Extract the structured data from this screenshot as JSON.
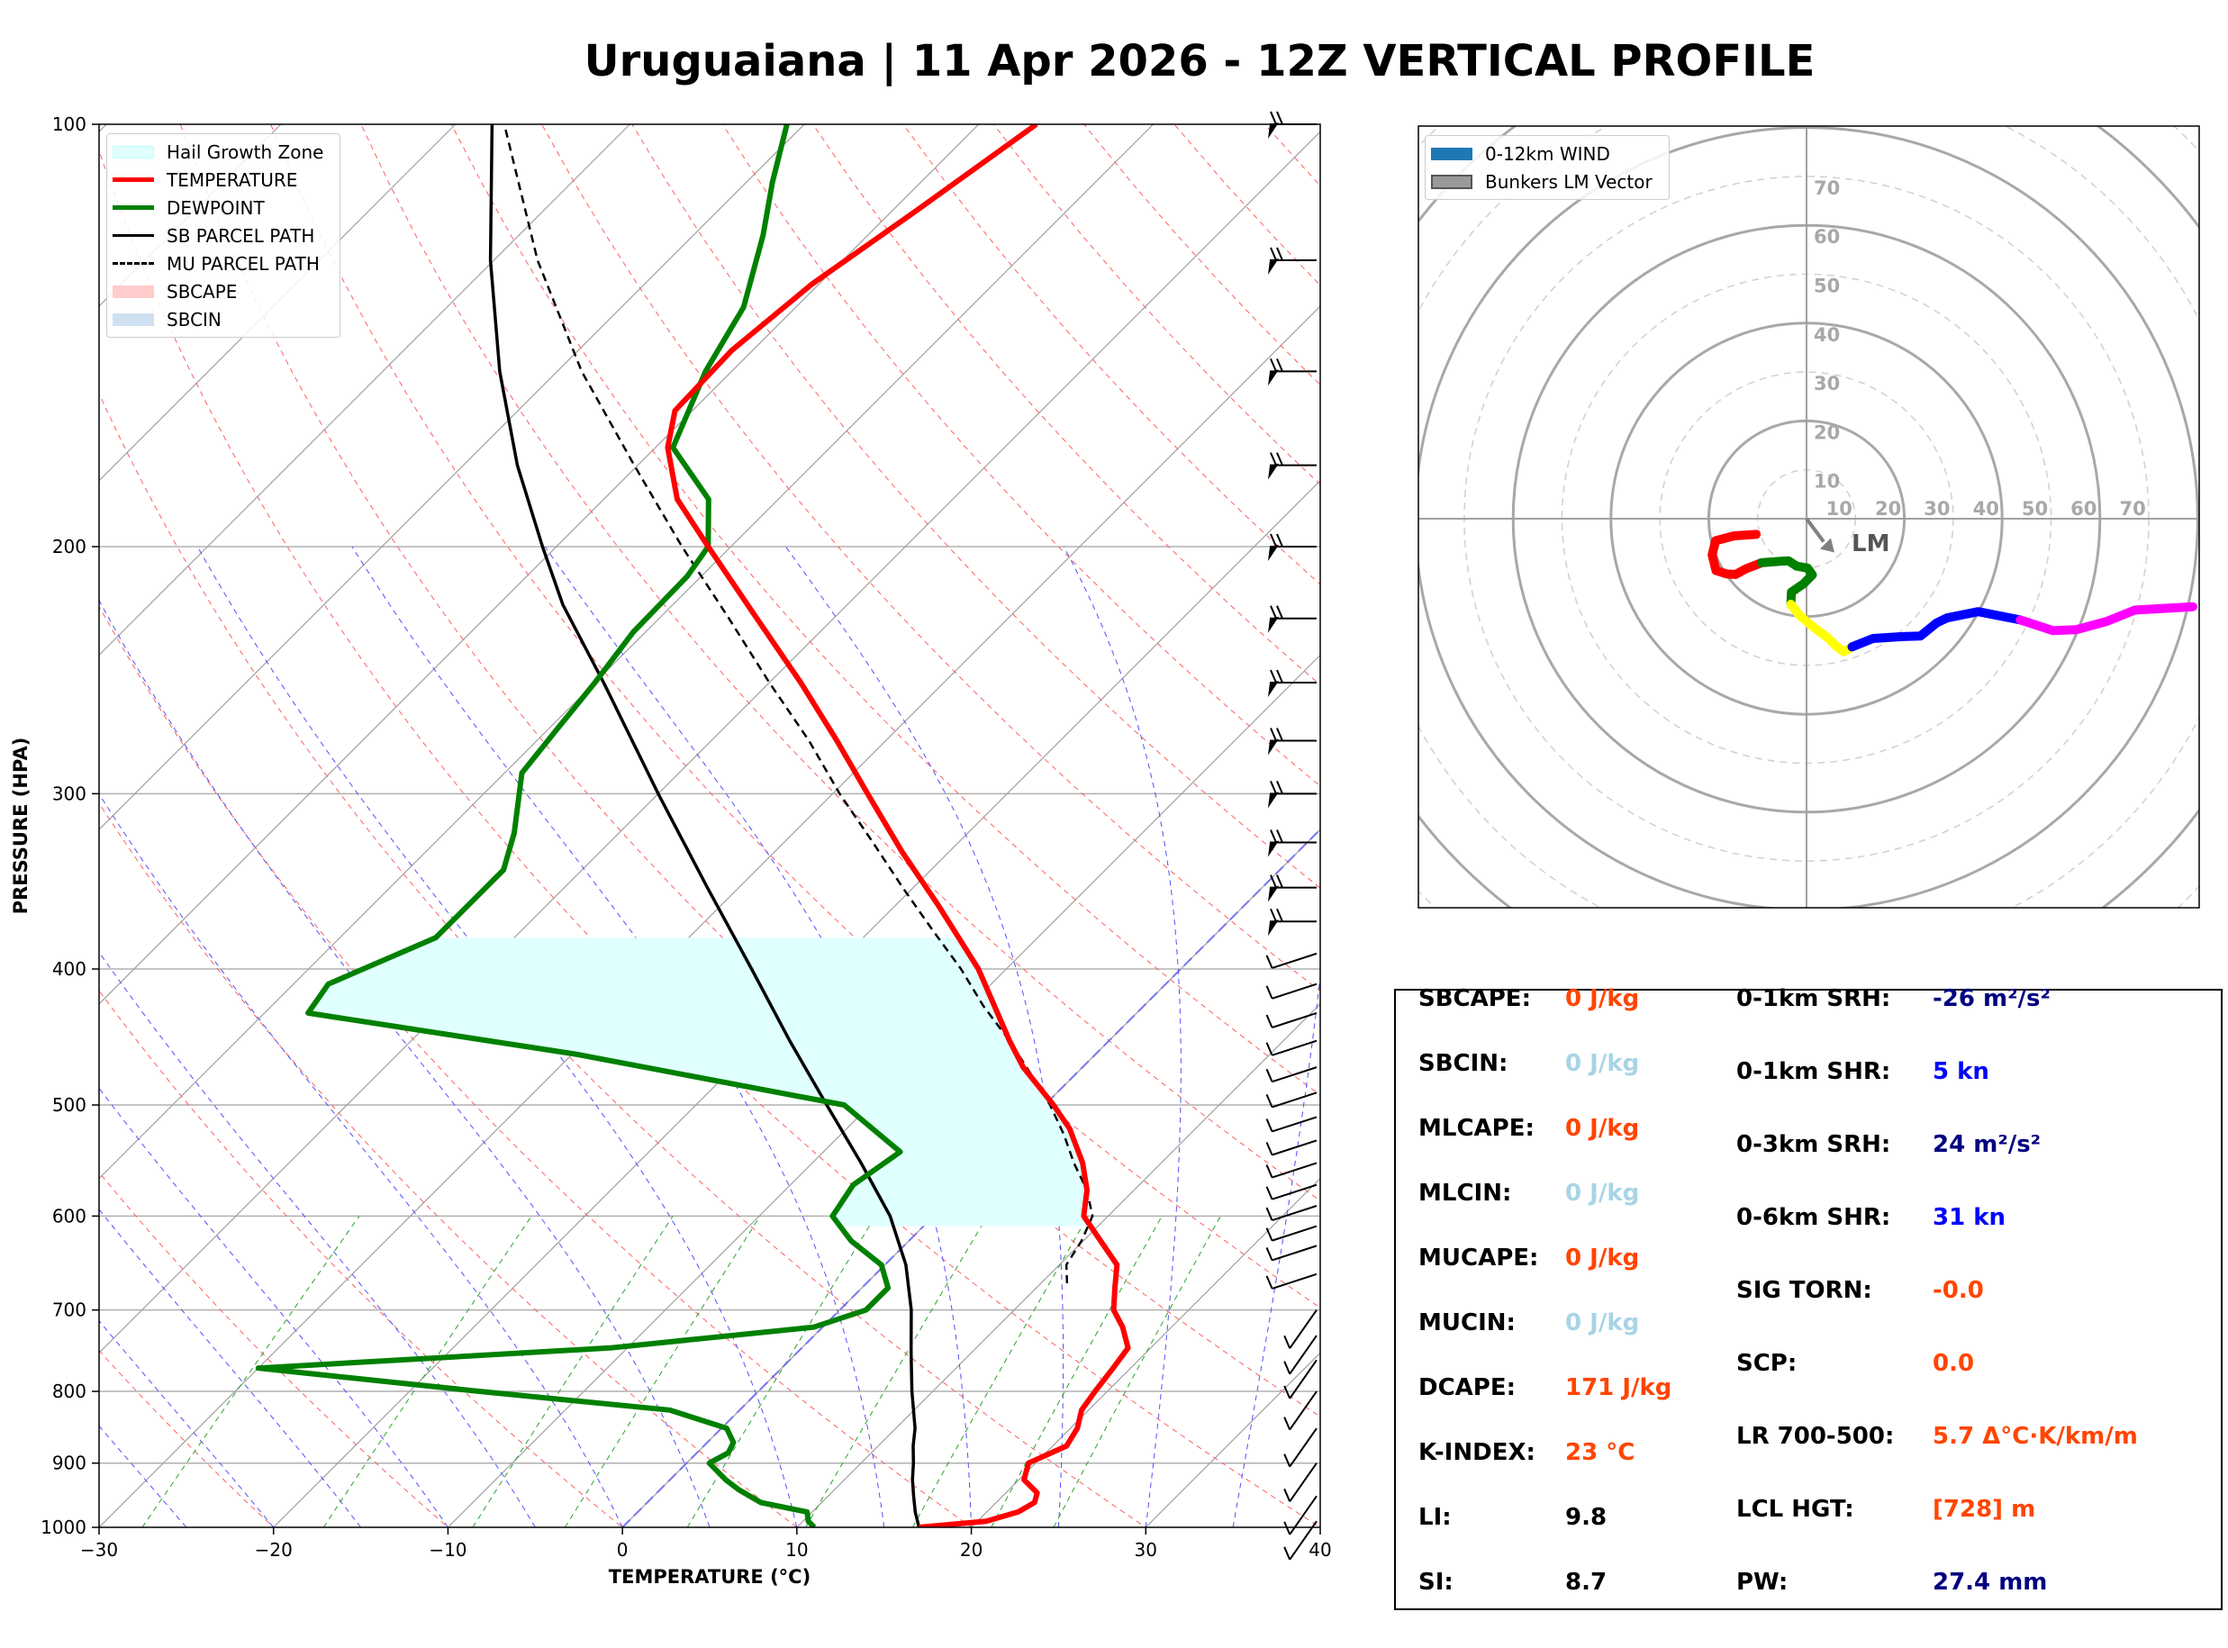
{
  "title": "Uruguaiana | 11 Apr 2026 - 12Z VERTICAL PROFILE",
  "colors": {
    "temperature": "#ff0000",
    "dewpoint": "#008000",
    "sb_parcel": "#000000",
    "mu_parcel": "#000000",
    "hgz_fill": "#e0ffff",
    "sbcape": "#ffcccc",
    "sbcin": "#cfe0f0",
    "hodo_0_1": "#ff0000",
    "hodo_1_3": "#008000",
    "hodo_3_6": "#ffff00",
    "hodo_6_9": "#0000ff",
    "hodo_9_12": "#ff00ff",
    "val_orange": "#ff4500",
    "val_lightblue": "#a9d4e6",
    "val_navy": "#000080",
    "val_blue": "#0000ff",
    "val_black": "#000000"
  },
  "chart_data": [
    {
      "type": "line",
      "chart": "skew-t",
      "xlabel": "TEMPERATURE (°C)",
      "ylabel": "PRESSURE (HPA)",
      "xlim": [
        -30,
        40
      ],
      "ylim": [
        1000,
        100
      ],
      "x_ticks": [
        -30,
        -20,
        -10,
        0,
        10,
        20,
        30,
        40
      ],
      "x_tick_labels": [
        "−30",
        "−20",
        "−10",
        "0",
        "10",
        "20",
        "30",
        "40"
      ],
      "y_ticks": [
        1000,
        900,
        800,
        700,
        600,
        500,
        400,
        300,
        200,
        100
      ],
      "legend": [
        "Hail Growth Zone",
        "TEMPERATURE",
        "DEWPOINT",
        "SB PARCEL PATH",
        "MU PARCEL PATH",
        "SBCAPE",
        "SBCIN"
      ],
      "legend_position": "top-left",
      "series": [
        {
          "name": "TEMPERATURE",
          "points": [
            [
              1000,
              17.0
            ],
            [
              990,
              20.5
            ],
            [
              975,
              21.8
            ],
            [
              960,
              22.2
            ],
            [
              945,
              21.8
            ],
            [
              925,
              20.3
            ],
            [
              900,
              19.6
            ],
            [
              875,
              20.8
            ],
            [
              850,
              20.4
            ],
            [
              825,
              19.6
            ],
            [
              800,
              19.3
            ],
            [
              770,
              19.0
            ],
            [
              745,
              18.7
            ],
            [
              720,
              17.2
            ],
            [
              700,
              15.7
            ],
            [
              675,
              14.5
            ],
            [
              650,
              13.3
            ],
            [
              625,
              11.0
            ],
            [
              600,
              8.6
            ],
            [
              575,
              7.3
            ],
            [
              550,
              5.5
            ],
            [
              520,
              2.8
            ],
            [
              500,
              0.5
            ],
            [
              470,
              -3.4
            ],
            [
              450,
              -5.7
            ],
            [
              400,
              -11.6
            ],
            [
              360,
              -17.6
            ],
            [
              330,
              -22.7
            ],
            [
              300,
              -28.0
            ],
            [
              275,
              -32.8
            ],
            [
              250,
              -38.2
            ],
            [
              225,
              -44.4
            ],
            [
              200,
              -51.3
            ],
            [
              185,
              -55.8
            ],
            [
              170,
              -59.3
            ],
            [
              160,
              -61.0
            ],
            [
              145,
              -61.2
            ],
            [
              130,
              -60.4
            ],
            [
              115,
              -58.6
            ],
            [
              100,
              -56.7
            ]
          ]
        },
        {
          "name": "DEWPOINT",
          "points": [
            [
              1000,
              11.0
            ],
            [
              990,
              10.3
            ],
            [
              975,
              9.7
            ],
            [
              960,
              6.5
            ],
            [
              940,
              4.5
            ],
            [
              925,
              3.2
            ],
            [
              900,
              1.3
            ],
            [
              885,
              1.8
            ],
            [
              870,
              1.5
            ],
            [
              850,
              0.3
            ],
            [
              825,
              -4.0
            ],
            [
              800,
              -16.0
            ],
            [
              770,
              -30.0
            ],
            [
              745,
              -11.0
            ],
            [
              720,
              -0.5
            ],
            [
              700,
              1.5
            ],
            [
              675,
              1.5
            ],
            [
              650,
              -0.2
            ],
            [
              625,
              -3.3
            ],
            [
              600,
              -5.8
            ],
            [
              570,
              -6.4
            ],
            [
              540,
              -5.6
            ],
            [
              500,
              -11.5
            ],
            [
              460,
              -29.8
            ],
            [
              430,
              -47.5
            ],
            [
              410,
              -48.0
            ],
            [
              380,
              -44.5
            ],
            [
              340,
              -44.5
            ],
            [
              320,
              -46.0
            ],
            [
              290,
              -49.0
            ],
            [
              270,
              -49.5
            ],
            [
              250,
              -50.0
            ],
            [
              230,
              -50.7
            ],
            [
              210,
              -50.8
            ],
            [
              200,
              -51.3
            ],
            [
              185,
              -54.0
            ],
            [
              170,
              -59.0
            ],
            [
              150,
              -61.5
            ],
            [
              135,
              -63.0
            ],
            [
              120,
              -66.0
            ],
            [
              110,
              -68.5
            ],
            [
              100,
              -71.0
            ]
          ]
        },
        {
          "name": "SB PARCEL PATH",
          "points": [
            [
              1000,
              17.0
            ],
            [
              975,
              15.9
            ],
            [
              950,
              14.9
            ],
            [
              925,
              13.9
            ],
            [
              900,
              13.0
            ],
            [
              875,
              12.0
            ],
            [
              850,
              11.1
            ],
            [
              800,
              8.8
            ],
            [
              750,
              6.5
            ],
            [
              700,
              4.1
            ],
            [
              650,
              1.2
            ],
            [
              600,
              -2.5
            ],
            [
              550,
              -7.2
            ],
            [
              500,
              -12.5
            ],
            [
              450,
              -18.3
            ],
            [
              400,
              -24.6
            ],
            [
              350,
              -31.8
            ],
            [
              300,
              -40.0
            ],
            [
              250,
              -49.5
            ],
            [
              220,
              -56.3
            ],
            [
              200,
              -60.8
            ],
            [
              175,
              -66.9
            ],
            [
              150,
              -73.3
            ],
            [
              125,
              -80.2
            ],
            [
              100,
              -87.9
            ]
          ]
        },
        {
          "name": "MU PARCEL PATH",
          "points": [
            [
              670,
              11.5
            ],
            [
              650,
              10.4
            ],
            [
              625,
              9.9
            ],
            [
              600,
              9.1
            ],
            [
              575,
              7.3
            ],
            [
              550,
              5.0
            ],
            [
              525,
              2.8
            ],
            [
              500,
              0.3
            ],
            [
              475,
              -2.6
            ],
            [
              450,
              -5.7
            ],
            [
              425,
              -9.2
            ],
            [
              400,
              -12.6
            ],
            [
              375,
              -16.5
            ],
            [
              350,
              -20.6
            ],
            [
              325,
              -24.9
            ],
            [
              300,
              -29.6
            ],
            [
              275,
              -34.4
            ],
            [
              250,
              -40.0
            ],
            [
              225,
              -46.0
            ],
            [
              200,
              -52.8
            ],
            [
              175,
              -60.2
            ],
            [
              150,
              -68.6
            ],
            [
              125,
              -77.5
            ],
            [
              100,
              -87.2
            ]
          ]
        }
      ],
      "hail_growth_zone": {
        "pressure_range": [
          380,
          610
        ],
        "temperature_range": [
          -30,
          -10
        ]
      }
    },
    {
      "type": "line",
      "chart": "hodograph",
      "legend": [
        "0-12km WIND",
        "Bunkers LM Vector"
      ],
      "legend_position": "top-left",
      "ring_labels": [
        "10",
        "20",
        "30",
        "40",
        "50",
        "60",
        "70"
      ],
      "lm_label": "LM",
      "lm_vector": [
        4.6,
        -5.8
      ],
      "segments": [
        {
          "layer": "0-1km",
          "points": [
            [
              -10.3,
              -3.2
            ],
            [
              -14.8,
              -3.5
            ],
            [
              -18.6,
              -4.5
            ],
            [
              -19.3,
              -7.4
            ],
            [
              -18.5,
              -10.6
            ],
            [
              -16.3,
              -11.3
            ],
            [
              -14.5,
              -11.4
            ],
            [
              -12.3,
              -10.2
            ],
            [
              -9.2,
              -9.0
            ]
          ]
        },
        {
          "layer": "1-3km",
          "points": [
            [
              -9.2,
              -9.0
            ],
            [
              -5.2,
              -8.7
            ],
            [
              -3.7,
              -8.6
            ],
            [
              -2.0,
              -9.7
            ],
            [
              0.2,
              -10.1
            ],
            [
              1.2,
              -11.5
            ],
            [
              -0.6,
              -13.3
            ],
            [
              -3.1,
              -15.0
            ],
            [
              -3.2,
              -17.5
            ]
          ]
        },
        {
          "layer": "3-6km",
          "points": [
            [
              -3.2,
              -17.5
            ],
            [
              -1.4,
              -19.8
            ],
            [
              1.3,
              -22.1
            ],
            [
              4.4,
              -24.4
            ],
            [
              6.1,
              -26.1
            ],
            [
              7.6,
              -27.2
            ],
            [
              9.3,
              -26.2
            ]
          ]
        },
        {
          "layer": "6-9km",
          "points": [
            [
              9.3,
              -26.2
            ],
            [
              13.6,
              -24.5
            ],
            [
              19.6,
              -24.1
            ],
            [
              23.3,
              -24.0
            ],
            [
              26.6,
              -21.3
            ],
            [
              28.7,
              -20.3
            ],
            [
              35.1,
              -19.0
            ],
            [
              43.7,
              -20.7
            ]
          ]
        },
        {
          "layer": "9-12km",
          "points": [
            [
              43.7,
              -20.7
            ],
            [
              50.4,
              -22.9
            ],
            [
              55.1,
              -22.7
            ],
            [
              61.4,
              -21.0
            ],
            [
              67.1,
              -18.7
            ],
            [
              79.0,
              -18.0
            ]
          ]
        }
      ]
    }
  ],
  "params": {
    "left": [
      {
        "label": "SBCAPE:",
        "value": "0 J/kg",
        "color": "#ff4500"
      },
      {
        "label": "SBCIN:",
        "value": "0 J/kg",
        "color": "#a9d4e6"
      },
      {
        "label": "MLCAPE:",
        "value": "0 J/kg",
        "color": "#ff4500"
      },
      {
        "label": "MLCIN:",
        "value": "0 J/kg",
        "color": "#a9d4e6"
      },
      {
        "label": "MUCAPE:",
        "value": "0 J/kg",
        "color": "#ff4500"
      },
      {
        "label": "MUCIN:",
        "value": "0 J/kg",
        "color": "#a9d4e6"
      },
      {
        "label": "DCAPE:",
        "value": "171 J/kg",
        "color": "#ff4500"
      },
      {
        "label": "K-INDEX:",
        "value": "23 °C",
        "color": "#ff4500"
      },
      {
        "label": "LI:",
        "value": "9.8",
        "color": "#000000"
      },
      {
        "label": "SI:",
        "value": "8.7",
        "color": "#000000"
      }
    ],
    "right": [
      {
        "label": "0-1km SRH:",
        "value": "-26 m²/s²",
        "color": "#000080"
      },
      {
        "label": "0-1km SHR:",
        "value": "5 kn",
        "color": "#0000ff"
      },
      {
        "label": "0-3km SRH:",
        "value": "24 m²/s²",
        "color": "#000080"
      },
      {
        "label": "0-6km SHR:",
        "value": "31 kn",
        "color": "#0000ff"
      },
      {
        "label": "SIG TORN:",
        "value": "-0.0",
        "color": "#ff4500"
      },
      {
        "label": "SCP:",
        "value": "0.0",
        "color": "#ff4500"
      },
      {
        "label": "LR 700-500:",
        "value": "5.7 Δ°C·K/km/m",
        "color": "#ff4500"
      },
      {
        "label": "LCL HGT:",
        "value": "[728] m",
        "color": "#ff4500"
      },
      {
        "label": "PW:",
        "value": "27.4 mm",
        "color": "#000080"
      }
    ]
  }
}
